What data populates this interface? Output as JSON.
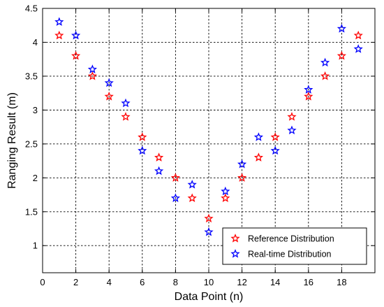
{
  "chart_data": {
    "type": "scatter",
    "title": "",
    "xlabel": "Data Point (n)",
    "ylabel": "Ranging Result (m)",
    "xlim": [
      0,
      20
    ],
    "ylim": [
      0.6,
      4.5
    ],
    "xticks": [
      0,
      2,
      4,
      6,
      8,
      10,
      12,
      14,
      16,
      18
    ],
    "yticks": [
      1,
      1.5,
      2,
      2.5,
      3,
      3.5,
      4,
      4.5
    ],
    "xtick_labels": [
      "0",
      "2",
      "4",
      "6",
      "8",
      "10",
      "12",
      "14",
      "16",
      "18"
    ],
    "ytick_labels": [
      "1",
      "1.5",
      "2",
      "2.5",
      "3",
      "3.5",
      "4",
      "4.5"
    ],
    "grid": true,
    "legend_position": "bottom-right",
    "marker": "star",
    "x": [
      1,
      2,
      3,
      4,
      5,
      6,
      7,
      8,
      9,
      10,
      11,
      12,
      13,
      14,
      15,
      16,
      17,
      18,
      19
    ],
    "series": [
      {
        "name": "Reference Distribution",
        "color": "#ff0000",
        "values": [
          4.1,
          3.8,
          3.5,
          3.2,
          2.9,
          2.6,
          2.3,
          2.0,
          1.7,
          1.4,
          1.7,
          2.0,
          2.3,
          2.6,
          2.9,
          3.2,
          3.5,
          3.8,
          4.1
        ]
      },
      {
        "name": "Real-time Distribution",
        "color": "#0000ff",
        "values": [
          4.3,
          4.1,
          3.6,
          3.4,
          3.1,
          2.4,
          2.1,
          1.7,
          1.9,
          1.2,
          1.8,
          2.2,
          2.6,
          2.4,
          2.7,
          3.3,
          3.7,
          4.2,
          3.9
        ]
      }
    ]
  }
}
